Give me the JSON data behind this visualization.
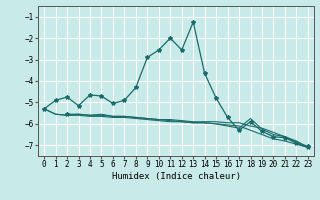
{
  "xlabel": "Humidex (Indice chaleur)",
  "bg_color": "#c8eae8",
  "grid_color": "#ffffff",
  "line_color": "#1a6b6b",
  "xlim": [
    -0.5,
    23.5
  ],
  "ylim": [
    -7.5,
    -0.5
  ],
  "yticks": [
    -7,
    -6,
    -5,
    -4,
    -3,
    -2,
    -1
  ],
  "xticks": [
    0,
    1,
    2,
    3,
    4,
    5,
    6,
    7,
    8,
    9,
    10,
    11,
    12,
    13,
    14,
    15,
    16,
    17,
    18,
    19,
    20,
    21,
    22,
    23
  ],
  "series1_x": [
    0,
    1,
    2,
    3,
    4,
    5,
    6,
    7,
    8,
    9,
    10,
    11,
    12,
    13,
    14,
    15,
    16,
    17,
    18,
    19,
    20,
    21,
    22,
    23
  ],
  "series1_y": [
    -5.3,
    -4.9,
    -4.75,
    -5.15,
    -4.65,
    -4.7,
    -5.05,
    -4.9,
    -4.3,
    -2.9,
    -2.55,
    -2.0,
    -2.55,
    -1.25,
    -3.65,
    -4.8,
    -5.7,
    -6.3,
    -5.9,
    -6.35,
    -6.6,
    -6.65,
    -6.9,
    -7.1
  ],
  "series2_x": [
    0,
    1,
    2,
    3,
    4,
    5,
    6,
    7,
    8,
    9,
    10,
    11,
    12,
    13,
    14,
    15,
    16,
    17,
    18,
    19,
    20,
    21,
    22,
    23
  ],
  "series2_y": [
    -5.3,
    -5.55,
    -5.6,
    -5.55,
    -5.6,
    -5.55,
    -5.65,
    -5.65,
    -5.7,
    -5.75,
    -5.8,
    -5.8,
    -5.85,
    -5.9,
    -5.9,
    -5.9,
    -5.95,
    -5.95,
    -6.1,
    -6.2,
    -6.4,
    -6.6,
    -6.8,
    -7.1
  ],
  "series3_x": [
    0,
    1,
    2,
    3,
    4,
    5,
    6,
    7,
    8,
    9,
    10,
    11,
    12,
    13,
    14,
    15,
    16,
    17,
    18,
    19,
    20,
    21,
    22,
    23
  ],
  "series3_y": [
    -5.3,
    -5.55,
    -5.6,
    -5.6,
    -5.65,
    -5.65,
    -5.7,
    -5.7,
    -5.75,
    -5.8,
    -5.85,
    -5.9,
    -5.9,
    -5.95,
    -5.95,
    -6.0,
    -6.05,
    -6.1,
    -6.3,
    -6.5,
    -6.7,
    -6.8,
    -6.95,
    -7.1
  ],
  "series4_x": [
    2,
    3,
    4,
    5,
    6,
    7,
    8,
    9,
    10,
    11,
    12,
    13,
    14,
    15,
    16,
    17,
    18,
    19,
    20,
    21,
    22,
    23
  ],
  "series4_y": [
    -5.55,
    -5.55,
    -5.6,
    -5.6,
    -5.65,
    -5.65,
    -5.7,
    -5.75,
    -5.8,
    -5.85,
    -5.9,
    -5.95,
    -5.95,
    -6.0,
    -6.1,
    -6.2,
    -5.75,
    -6.25,
    -6.5,
    -6.6,
    -6.85,
    -7.05
  ],
  "tick_fontsize": 5.5,
  "xlabel_fontsize": 6.5
}
